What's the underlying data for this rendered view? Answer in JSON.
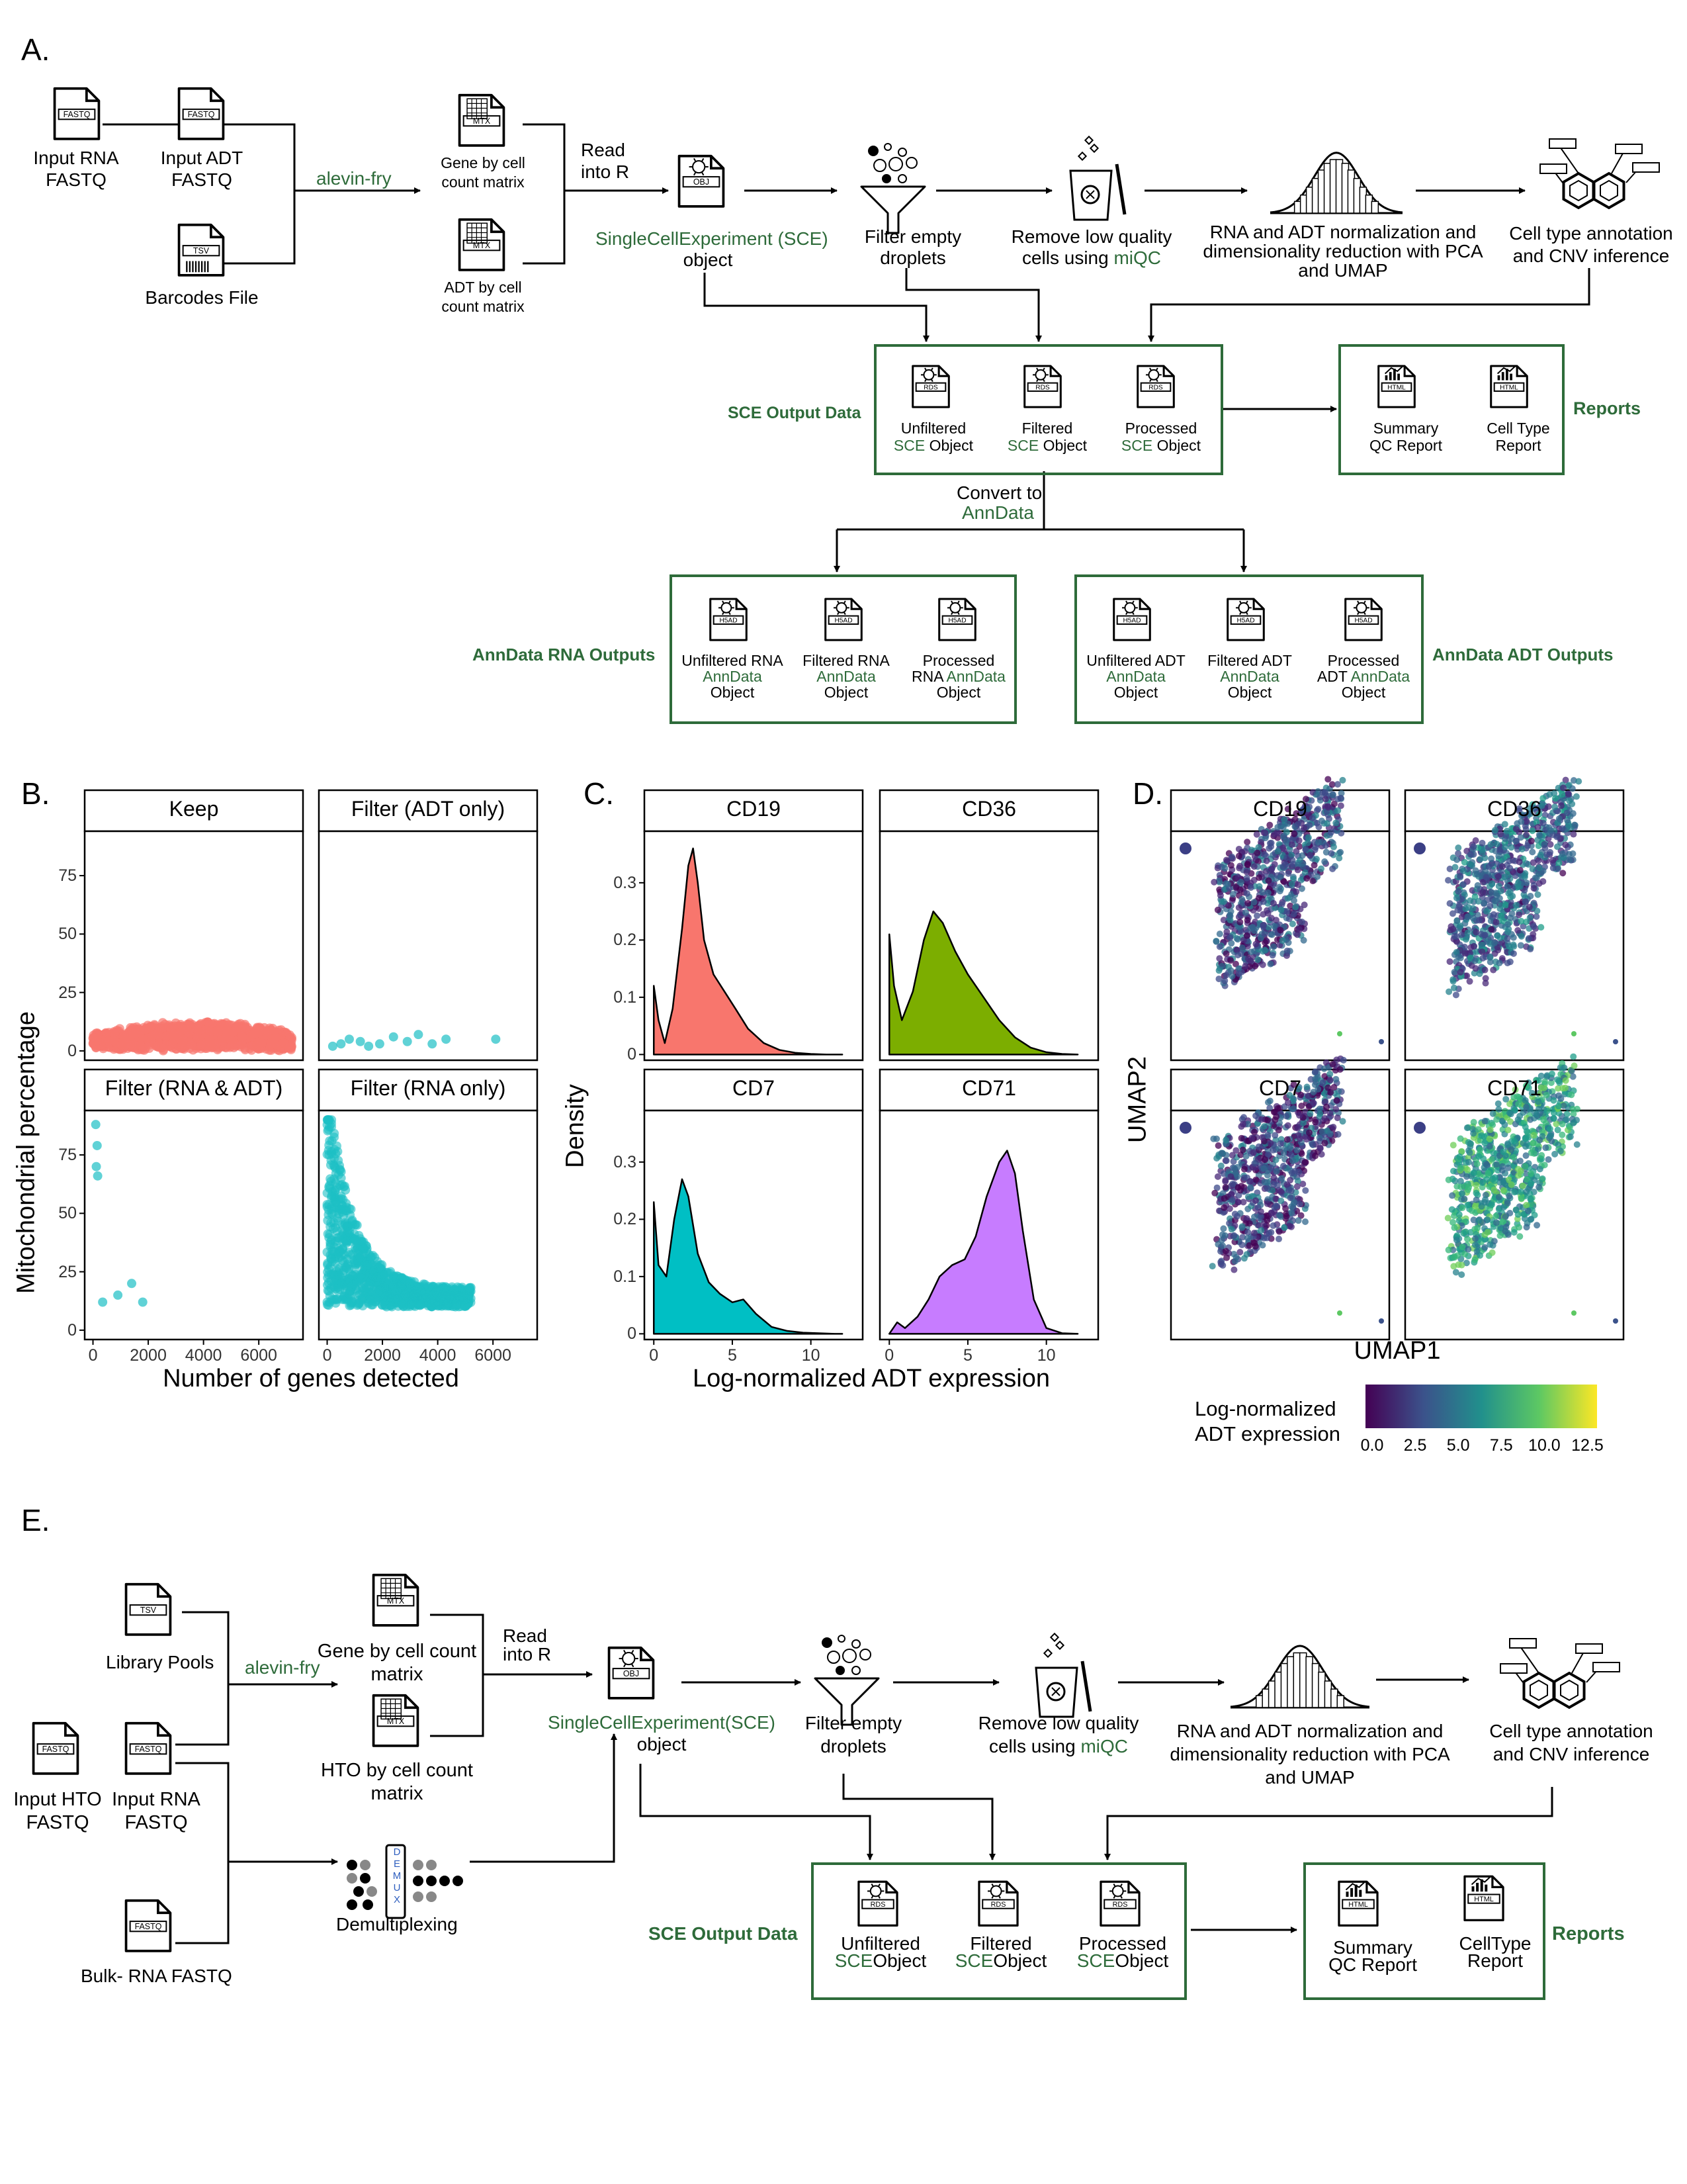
{
  "panels": {
    "a": "A.",
    "b": "B.",
    "c": "C.",
    "d": "D.",
    "e": "E."
  },
  "a": {
    "input_rna": [
      "Input RNA",
      "FASTQ"
    ],
    "input_adt": [
      "Input ADT",
      "FASTQ"
    ],
    "barcodes": "Barcodes File",
    "alevin": "alevin-fry",
    "gene_matrix": [
      "Gene by cell",
      "count matrix"
    ],
    "adt_matrix": [
      "ADT by cell",
      "count matrix"
    ],
    "read_into_r": [
      "Read",
      "into R"
    ],
    "sce_obj": [
      "SingleCellExperiment (SCE)",
      "object"
    ],
    "filter_empty": [
      "Filter empty",
      "droplets"
    ],
    "remove_lq": [
      "Remove low quality",
      "cells using ",
      "miQC"
    ],
    "norm": [
      "RNA and ADT normalization and",
      "dimensionality reduction with PCA",
      "and UMAP"
    ],
    "celltype": [
      "Cell type annotation",
      "and CNV inference"
    ],
    "sce_output_label": "SCE Output Data",
    "sce_outputs": [
      {
        "l1": "Unfiltered",
        "g": "SCE",
        "l2": " Object"
      },
      {
        "l1": "Filtered",
        "g": "SCE",
        "l2": " Object"
      },
      {
        "l1": "Processed",
        "g": "SCE",
        "l2": " Object"
      }
    ],
    "reports_label": "Reports",
    "reports": [
      [
        "Summary",
        "QC Report"
      ],
      [
        "Cell Type",
        "Report"
      ]
    ],
    "convert": [
      "Convert to",
      "AnnData"
    ],
    "anndata_rna_label": "AnnData RNA Outputs",
    "anndata_adt_label": "AnnData ADT Outputs",
    "rna_outputs": [
      {
        "l1": "Unfiltered RNA",
        "g": "AnnData",
        "l3": "Object"
      },
      {
        "l1": "Filtered RNA",
        "g": "AnnData",
        "l3": "Object"
      },
      {
        "l1": "Processed",
        "pre": "RNA ",
        "g": "AnnData",
        "l3": "Object"
      }
    ],
    "adt_outputs": [
      {
        "l1": "Unfiltered ADT",
        "g": "AnnData",
        "l3": "Object"
      },
      {
        "l1": "Filtered ADT",
        "g": "AnnData",
        "l3": "Object"
      },
      {
        "l1": "Processed",
        "pre": "ADT ",
        "g": "AnnData",
        "l3": "Object"
      }
    ],
    "file_tags": {
      "fastq": "FASTQ",
      "tsv": "TSV",
      "mtx": "MTX",
      "obj": "OBJ",
      "rds": "RDS",
      "html": "HTML",
      "h5ad": "H5AD"
    }
  },
  "chart_data": [
    {
      "type": "scatter",
      "facets": [
        "Keep",
        "Filter (ADT only)",
        "Filter (RNA & ADT)",
        "Filter (RNA only)"
      ],
      "xlabel": "Number of genes detected",
      "ylabel": "Mitochondrial percentage",
      "xticks": [
        0,
        2000,
        4000,
        6000
      ],
      "yticks": [
        0,
        25,
        50,
        75
      ],
      "xlim": [
        -300,
        7600
      ],
      "ylim": [
        -4,
        94
      ],
      "colors": {
        "Keep": "#f8766d",
        "Filter (ADT only)": "#1cbfc4",
        "Filter (RNA & ADT)": "#1cbfc4",
        "Filter (RNA only)": "#1cbfc4"
      },
      "approx_points": {
        "Keep": "dense band, x 0–7200, y 0–10",
        "Filter (ADT only)": [
          [
            200,
            2
          ],
          [
            500,
            3
          ],
          [
            800,
            5
          ],
          [
            1200,
            4
          ],
          [
            1500,
            2
          ],
          [
            1900,
            3
          ],
          [
            2400,
            6
          ],
          [
            2900,
            4
          ],
          [
            3300,
            7
          ],
          [
            3800,
            3
          ],
          [
            4300,
            5
          ],
          [
            6100,
            5
          ]
        ],
        "Filter (RNA & ADT)": [
          [
            100,
            88
          ],
          [
            150,
            79
          ],
          [
            120,
            70
          ],
          [
            170,
            66
          ],
          [
            350,
            12
          ],
          [
            900,
            15
          ],
          [
            1400,
            20
          ],
          [
            1800,
            12
          ]
        ],
        "Filter (RNA only)": "dense, y decreasing from 90 to 10 as x grows 0–5200"
      }
    },
    {
      "type": "area",
      "facets": [
        "CD19",
        "CD36",
        "CD7",
        "CD71"
      ],
      "xlabel": "Log-normalized ADT expression",
      "ylabel": "Density",
      "xticks": [
        0,
        5,
        10
      ],
      "yticks": [
        0.0,
        0.1,
        0.2,
        0.3
      ],
      "xlim": [
        -0.6,
        13.3
      ],
      "ylim": [
        -0.01,
        0.39
      ],
      "colors": {
        "CD19": "#f8766d",
        "CD36": "#7cae00",
        "CD7": "#00bfc4",
        "CD71": "#c77cff"
      },
      "series": [
        {
          "name": "CD19",
          "x": [
            0,
            0.3,
            0.7,
            1.2,
            1.8,
            2.2,
            2.5,
            2.8,
            3.2,
            3.8,
            4.5,
            5.2,
            6,
            7,
            8,
            9,
            10,
            11,
            12
          ],
          "y": [
            0.12,
            0.06,
            0.02,
            0.08,
            0.22,
            0.33,
            0.36,
            0.3,
            0.2,
            0.14,
            0.11,
            0.08,
            0.045,
            0.02,
            0.008,
            0.003,
            0.001,
            0,
            0
          ]
        },
        {
          "name": "CD36",
          "x": [
            0,
            0.3,
            0.8,
            1.5,
            2.2,
            2.8,
            3.4,
            4.2,
            5,
            6,
            7,
            8,
            9,
            10,
            11,
            12
          ],
          "y": [
            0.21,
            0.12,
            0.06,
            0.11,
            0.2,
            0.25,
            0.23,
            0.18,
            0.14,
            0.1,
            0.06,
            0.03,
            0.012,
            0.004,
            0.001,
            0
          ]
        },
        {
          "name": "CD7",
          "x": [
            0,
            0.3,
            0.8,
            1.3,
            1.8,
            2.2,
            2.8,
            3.5,
            4.2,
            5,
            5.7,
            6.5,
            7.5,
            8.5,
            9.5,
            10.5,
            11.5,
            12
          ],
          "y": [
            0.23,
            0.12,
            0.1,
            0.2,
            0.27,
            0.24,
            0.14,
            0.09,
            0.07,
            0.055,
            0.06,
            0.035,
            0.012,
            0.005,
            0.002,
            0.001,
            0,
            0
          ]
        },
        {
          "name": "CD71",
          "x": [
            0,
            0.5,
            1,
            1.8,
            2.5,
            3.2,
            4,
            4.8,
            5.5,
            6.2,
            7,
            7.5,
            8,
            8.5,
            9.2,
            10,
            11,
            12
          ],
          "y": [
            0.0,
            0.02,
            0.01,
            0.03,
            0.06,
            0.1,
            0.12,
            0.13,
            0.17,
            0.24,
            0.3,
            0.32,
            0.28,
            0.18,
            0.06,
            0.01,
            0.001,
            0
          ]
        }
      ]
    },
    {
      "type": "scatter",
      "facets": [
        "CD19",
        "CD36",
        "CD7",
        "CD71"
      ],
      "xlabel": "UMAP1",
      "ylabel": "UMAP2",
      "color_scale": {
        "title": [
          "Log-normalized",
          "ADT expression"
        ],
        "ticks": [
          "0.0",
          "2.5",
          "5.0",
          "7.5",
          "10.0",
          "12.5"
        ],
        "range": [
          0,
          12.5
        ],
        "colors": [
          "#440154",
          "#3b528b",
          "#21908c",
          "#5dc863",
          "#fde725"
        ]
      },
      "facet_mean_color": {
        "CD19": "#3d4a8a",
        "CD36": "#355e8d",
        "CD7": "#3e4a89",
        "CD71": "#2a9b86"
      }
    }
  ],
  "e": {
    "library_pools": "Library Pools",
    "input_hto": [
      "Input HTO",
      "FASTQ"
    ],
    "input_rna": [
      "Input RNA",
      "FASTQ"
    ],
    "bulk": "Bulk- RNA FASTQ",
    "alevin": "alevin-fry",
    "gene_matrix": [
      "Gene by cell count",
      "matrix"
    ],
    "hto_matrix": [
      "HTO by cell count",
      "matrix"
    ],
    "read_into_r": [
      "Read",
      "into R"
    ],
    "demux": "Demultiplexing",
    "demux_letters": [
      "D",
      "E",
      "M",
      "U",
      "X"
    ],
    "sce_obj": [
      "SingleCellExperiment(SCE)",
      "object"
    ],
    "filter_empty": [
      "Filter empty",
      "droplets"
    ],
    "remove_lq": [
      "Remove low quality",
      "cells using ",
      "miQC"
    ],
    "norm": [
      "RNA and ADT normalization and",
      "dimensionality reduction with PCA",
      "and UMAP"
    ],
    "celltype": [
      "Cell type annotation",
      "and CNV inference"
    ],
    "sce_output_label": "SCE Output Data",
    "sce_outputs": [
      {
        "l1": "Unfiltered",
        "g": "SCE",
        "l2": "Object"
      },
      {
        "l1": "Filtered",
        "g": "SCE",
        "l2": "Object"
      },
      {
        "l1": "Processed",
        "g": "SCE",
        "l2": "Object"
      }
    ],
    "reports_label": "Reports",
    "reports": [
      [
        "Summary",
        "QC Report"
      ],
      [
        "CellType",
        "Report"
      ]
    ]
  }
}
